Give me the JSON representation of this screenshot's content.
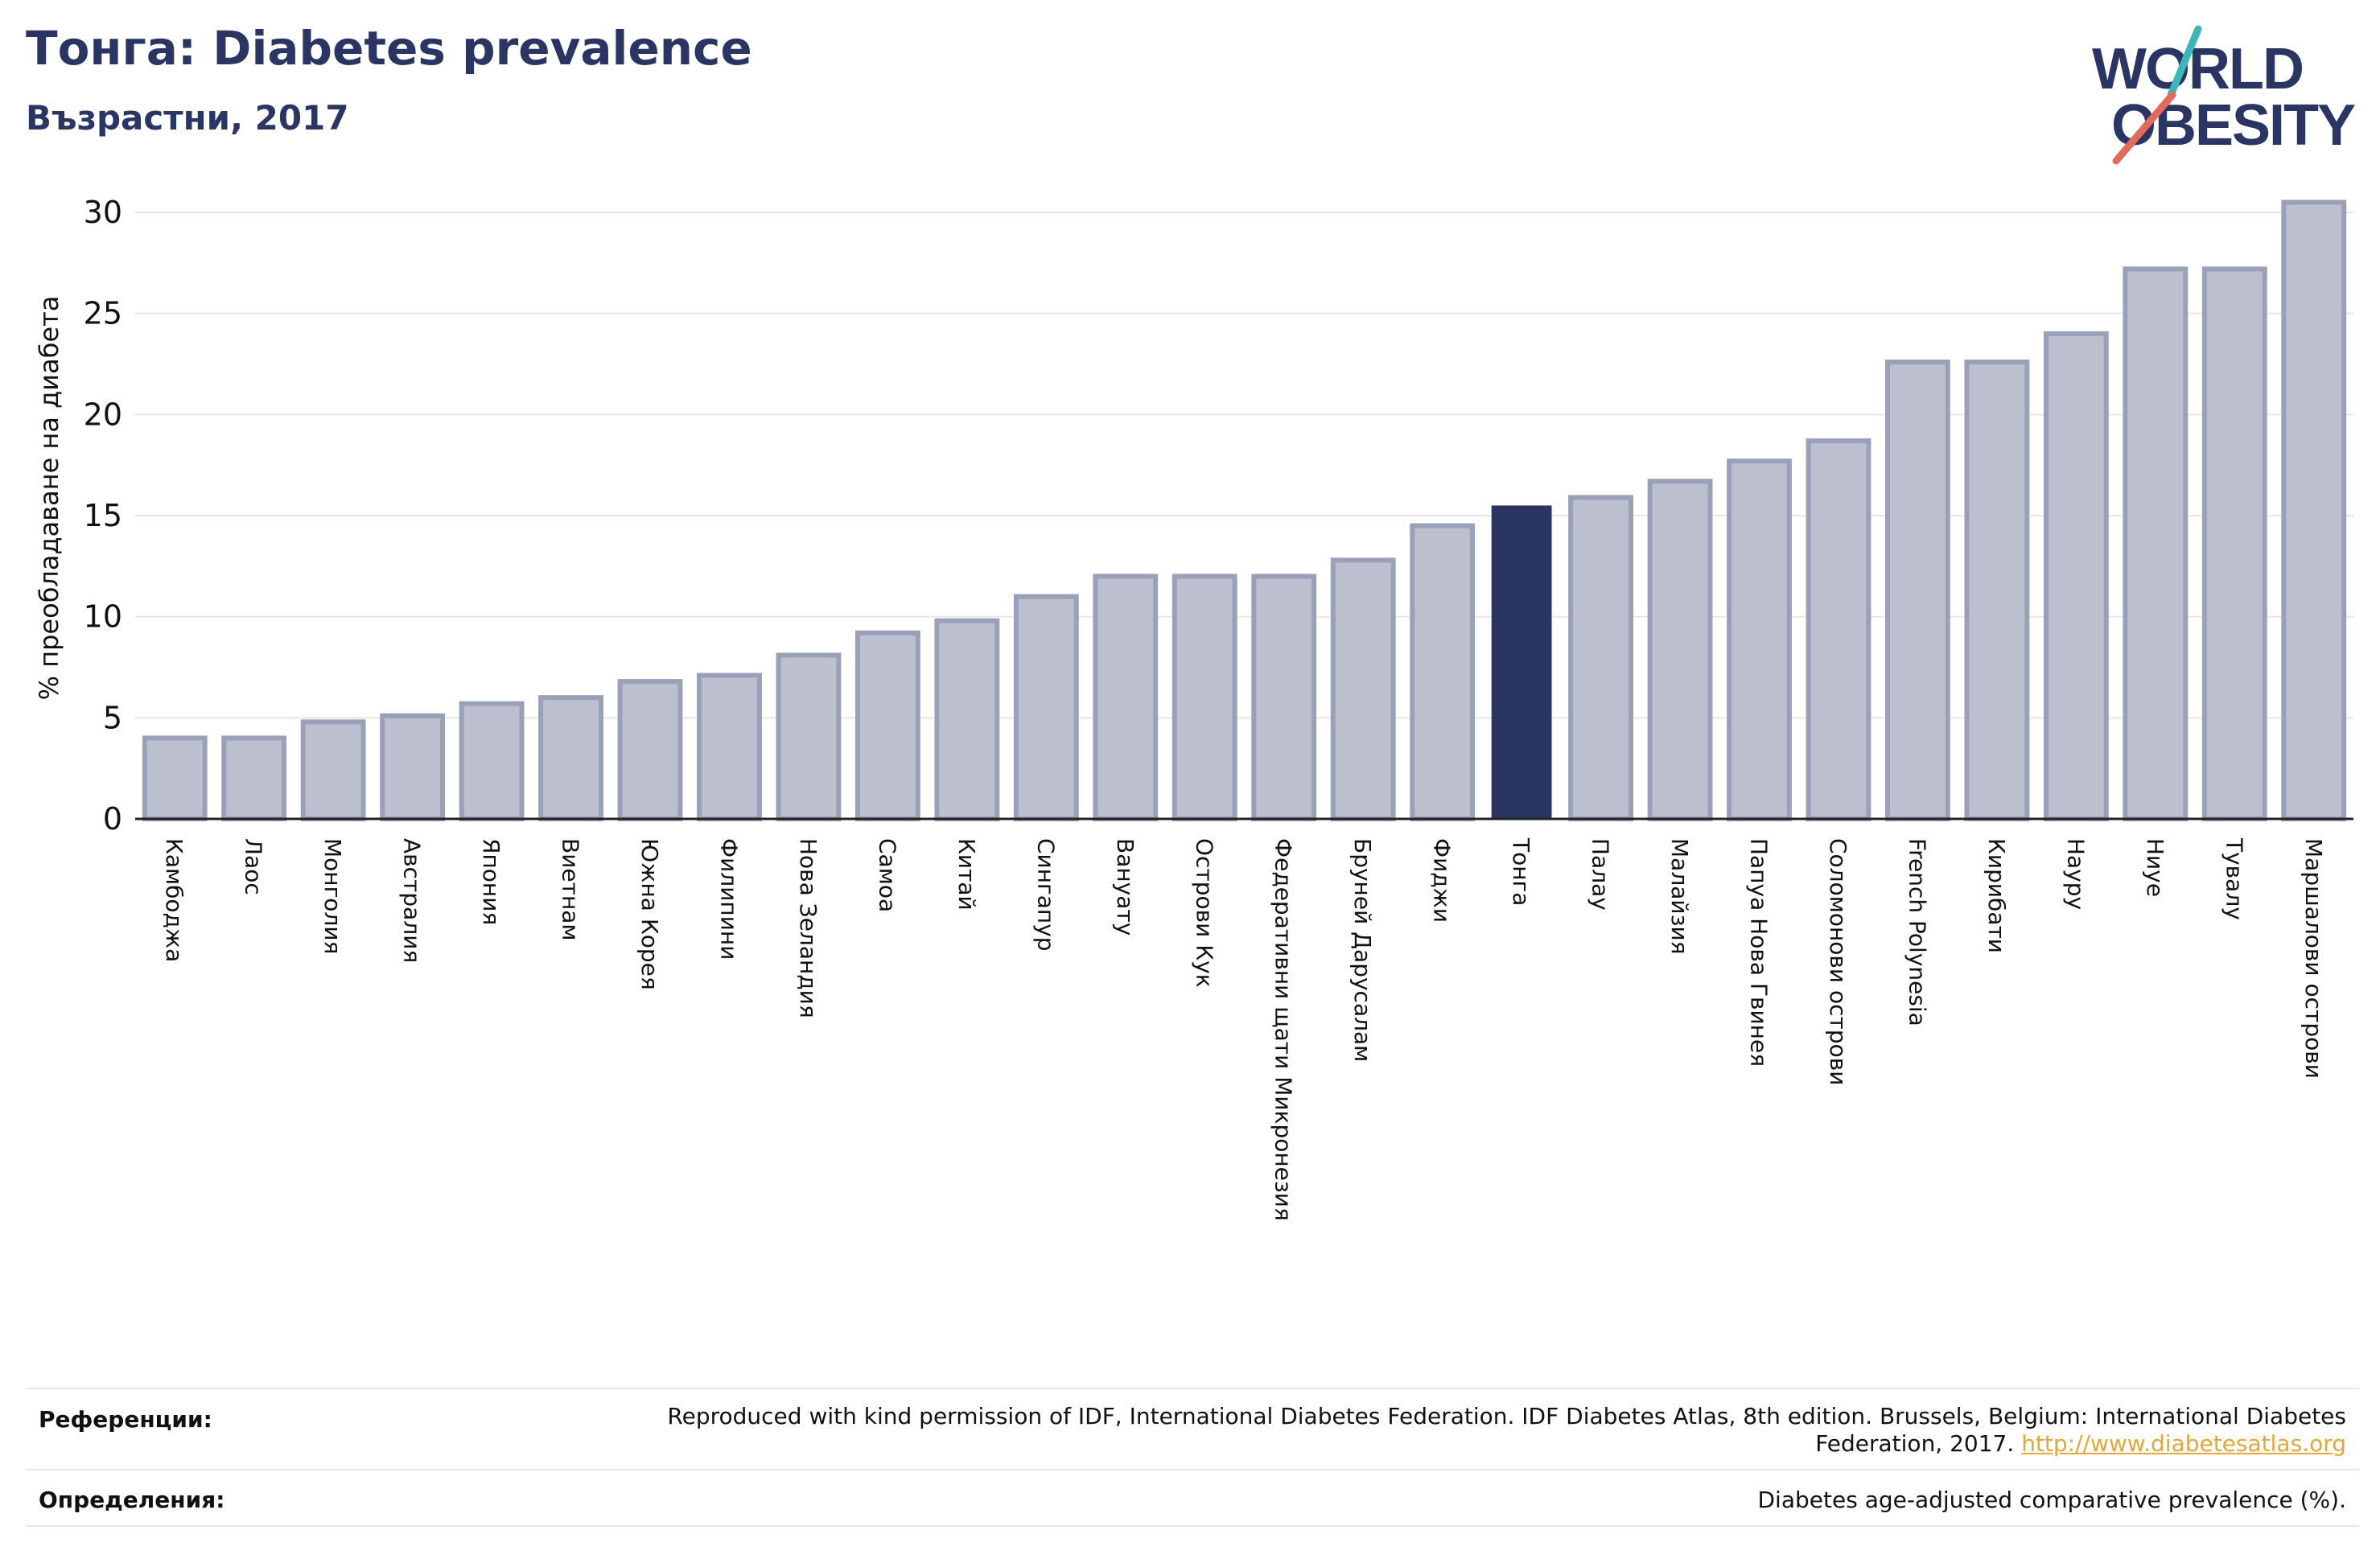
{
  "header": {
    "title": "Тонга: Diabetes prevalence",
    "subtitle": "Възрастни, 2017",
    "logo_text_line1": "WORLD",
    "logo_text_line2": "OBESITY"
  },
  "colors": {
    "bar": "#bcc0ce",
    "bar_border": "#9aa0b8",
    "highlight": "#2a3564",
    "grid": "#e6e6e6",
    "title": "#2a3564",
    "logo_accent_teal": "#3bb7b7",
    "logo_accent_red": "#e16b5a"
  },
  "chart_data": {
    "type": "bar",
    "title": "Тонга: Diabetes prevalence",
    "subtitle": "Възрастни, 2017",
    "ylabel": "% преобладаване на диабета",
    "xlabel": "",
    "ylim": [
      0,
      30
    ],
    "yticks": [
      0,
      5,
      10,
      15,
      20,
      25,
      30
    ],
    "grid": true,
    "highlight": "Тонга",
    "categories": [
      "Камбоджа",
      "Лаос",
      "Монголия",
      "Австралия",
      "Япония",
      "Виетнам",
      "Южна Корея",
      "Филипини",
      "Нова Зеландия",
      "Самоа",
      "Китай",
      "Сингапур",
      "Вануату",
      "Острови Кук",
      "Федеративни щати Микронезия",
      "Бруней Дарусалам",
      "Фиджи",
      "Тонга",
      "Палау",
      "Малайзия",
      "Папуа Нова Гвинея",
      "Соломонови острови",
      "French Polynesia",
      "Кирибати",
      "Науру",
      "Ниуе",
      "Тувалу",
      "Маршалови острови"
    ],
    "values": [
      4.0,
      4.0,
      4.8,
      5.1,
      5.7,
      6.0,
      6.8,
      7.1,
      8.1,
      9.2,
      9.8,
      11.0,
      12.0,
      12.0,
      12.0,
      12.8,
      14.5,
      15.5,
      15.9,
      16.7,
      17.7,
      18.7,
      22.6,
      22.6,
      24.0,
      27.2,
      27.2,
      30.5
    ]
  },
  "references": {
    "ref_label": "Референции:",
    "ref_text": "Reproduced with kind permission of IDF, International Diabetes Federation. IDF Diabetes Atlas, 8th edition. Brussels, Belgium: International Diabetes Federation, 2017.",
    "ref_link": "http://www.diabetesatlas.org",
    "def_label": "Определения:",
    "def_text": "Diabetes age-adjusted comparative prevalence (%)."
  }
}
